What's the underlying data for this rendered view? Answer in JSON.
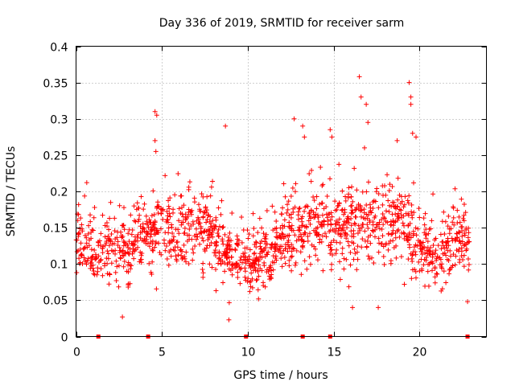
{
  "chart_data": {
    "type": "scatter",
    "title": "Day 336 of 2019, SRMTID for receiver sarm",
    "xlabel": "GPS time / hours",
    "ylabel": "SRMTID / TECUs",
    "xlim": [
      0,
      23.9
    ],
    "ylim": [
      0,
      0.4
    ],
    "grid": true,
    "marker": "plus",
    "color": "#ff0000",
    "x_ticks": [
      0,
      5,
      10,
      15,
      20
    ],
    "x_tick_labels": [
      "0",
      "5",
      "10",
      "15",
      "20"
    ],
    "y_ticks": [
      0,
      0.05,
      0.1,
      0.15,
      0.2,
      0.25,
      0.3,
      0.35,
      0.4
    ],
    "y_tick_labels": [
      "0",
      "0.05",
      "0.1",
      "0.15",
      "0.2",
      "0.25",
      "0.3",
      "0.35",
      "0.4"
    ],
    "trend": {
      "x": [
        0,
        1,
        2,
        3,
        4,
        5,
        6,
        7,
        8,
        9,
        10,
        11,
        12,
        13,
        14,
        15,
        16,
        17,
        18,
        19,
        20,
        21,
        22,
        23
      ],
      "center": [
        0.13,
        0.12,
        0.12,
        0.12,
        0.14,
        0.145,
        0.14,
        0.15,
        0.14,
        0.11,
        0.1,
        0.11,
        0.13,
        0.155,
        0.16,
        0.14,
        0.16,
        0.15,
        0.16,
        0.15,
        0.12,
        0.11,
        0.13,
        0.14
      ],
      "spread": [
        0.035,
        0.035,
        0.035,
        0.04,
        0.04,
        0.045,
        0.045,
        0.045,
        0.04,
        0.03,
        0.03,
        0.04,
        0.04,
        0.045,
        0.045,
        0.045,
        0.05,
        0.05,
        0.05,
        0.05,
        0.04,
        0.04,
        0.04,
        0.04
      ]
    },
    "outliers": [
      {
        "x": 4.6,
        "y": 0.31
      },
      {
        "x": 4.7,
        "y": 0.305
      },
      {
        "x": 4.6,
        "y": 0.27
      },
      {
        "x": 4.65,
        "y": 0.255
      },
      {
        "x": 8.7,
        "y": 0.29
      },
      {
        "x": 12.7,
        "y": 0.3
      },
      {
        "x": 13.2,
        "y": 0.29
      },
      {
        "x": 13.3,
        "y": 0.275
      },
      {
        "x": 14.8,
        "y": 0.285
      },
      {
        "x": 14.9,
        "y": 0.275
      },
      {
        "x": 16.5,
        "y": 0.358
      },
      {
        "x": 16.6,
        "y": 0.33
      },
      {
        "x": 16.9,
        "y": 0.32
      },
      {
        "x": 17.0,
        "y": 0.295
      },
      {
        "x": 16.8,
        "y": 0.26
      },
      {
        "x": 18.7,
        "y": 0.27
      },
      {
        "x": 19.4,
        "y": 0.35
      },
      {
        "x": 19.5,
        "y": 0.33
      },
      {
        "x": 19.5,
        "y": 0.32
      },
      {
        "x": 19.6,
        "y": 0.28
      },
      {
        "x": 19.8,
        "y": 0.275
      },
      {
        "x": 2.7,
        "y": 0.027
      },
      {
        "x": 8.9,
        "y": 0.023
      },
      {
        "x": 16.1,
        "y": 0.04
      },
      {
        "x": 17.6,
        "y": 0.04
      },
      {
        "x": 22.8,
        "y": 0.048
      }
    ],
    "zero_marks_x": [
      1.3,
      4.2,
      9.9,
      13.2,
      14.8,
      22.8
    ]
  }
}
